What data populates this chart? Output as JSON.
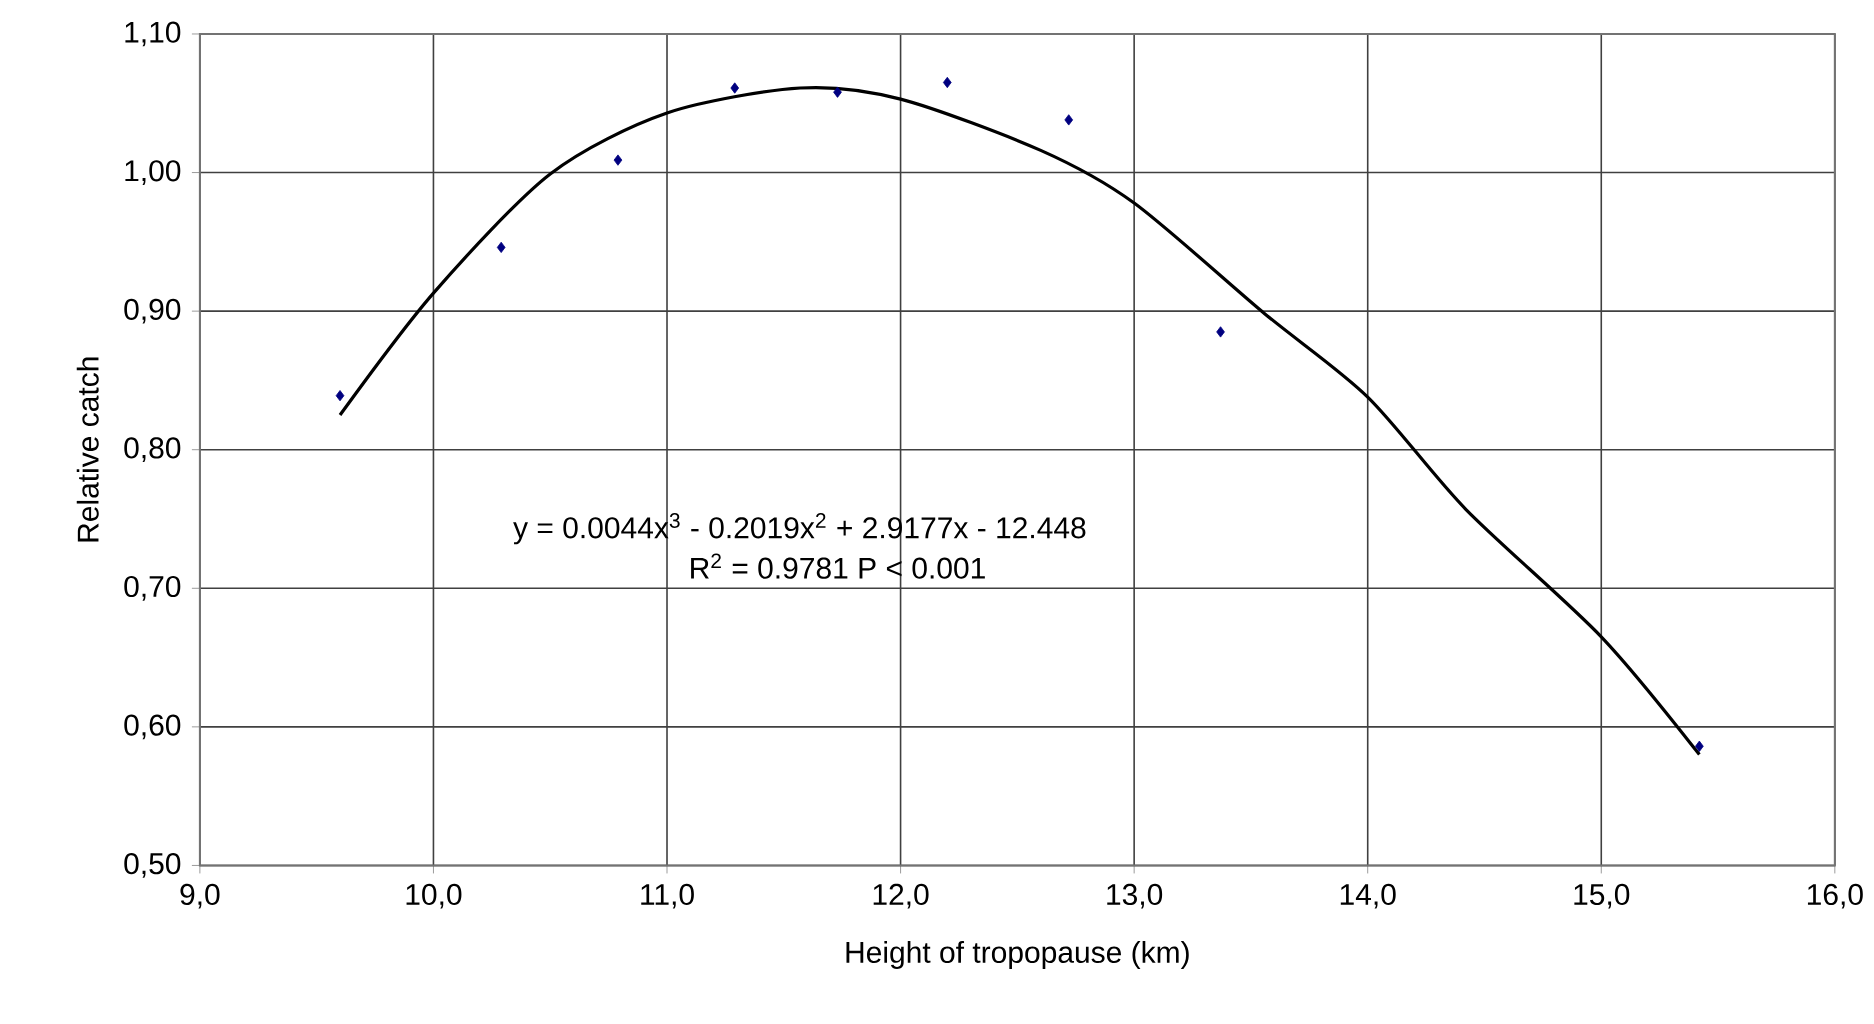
{
  "chart_data": {
    "type": "scatter",
    "xlabel": "Height of tropopause (km)",
    "ylabel": "Relative catch",
    "xlim": [
      9.0,
      16.0
    ],
    "ylim": [
      0.5,
      1.1
    ],
    "xticks": [
      {
        "value": 9,
        "label": "9,0"
      },
      {
        "value": 10,
        "label": "10,0"
      },
      {
        "value": 11,
        "label": "11,0"
      },
      {
        "value": 12,
        "label": "12,0"
      },
      {
        "value": 13,
        "label": "13,0"
      },
      {
        "value": 14,
        "label": "14,0"
      },
      {
        "value": 15,
        "label": "15,0"
      },
      {
        "value": 16,
        "label": "16,0"
      }
    ],
    "yticks": [
      {
        "value": 0.5,
        "label": "0,50"
      },
      {
        "value": 0.6,
        "label": "0,60"
      },
      {
        "value": 0.7,
        "label": "0,70"
      },
      {
        "value": 0.8,
        "label": "0,80"
      },
      {
        "value": 0.9,
        "label": "0,90"
      },
      {
        "value": 1.0,
        "label": "1,00"
      },
      {
        "value": 1.1,
        "label": "1,10"
      }
    ],
    "grid": true,
    "marker": "diamond",
    "series": [
      {
        "color": "#000080",
        "x": [
          9.6,
          10.29,
          10.79,
          11.29,
          11.73,
          12.2,
          12.72,
          13.37,
          15.42
        ],
        "values": [
          0.839,
          0.946,
          1.009,
          1.061,
          1.058,
          1.065,
          1.038,
          0.885,
          0.586
        ]
      },
      {
        "type": "line",
        "color": "#000000",
        "marker": "none",
        "x": [
          9.6,
          10.0,
          10.5,
          11.0,
          11.57,
          12.0,
          12.6,
          13.0,
          13.56,
          14.0,
          14.42,
          15.0,
          15.42
        ],
        "values": [
          0.825,
          0.913,
          0.999,
          1.043,
          1.061,
          1.053,
          1.016,
          0.978,
          0.898,
          0.838,
          0.757,
          0.665,
          0.58
        ]
      }
    ],
    "annotations": [
      "y = 0.0044x$^{3}$ - 0.2019x$^{2}$ + 2.9177x - 12.448",
      "R$^{2}$ = 0.9781 P < 0.001"
    ]
  }
}
